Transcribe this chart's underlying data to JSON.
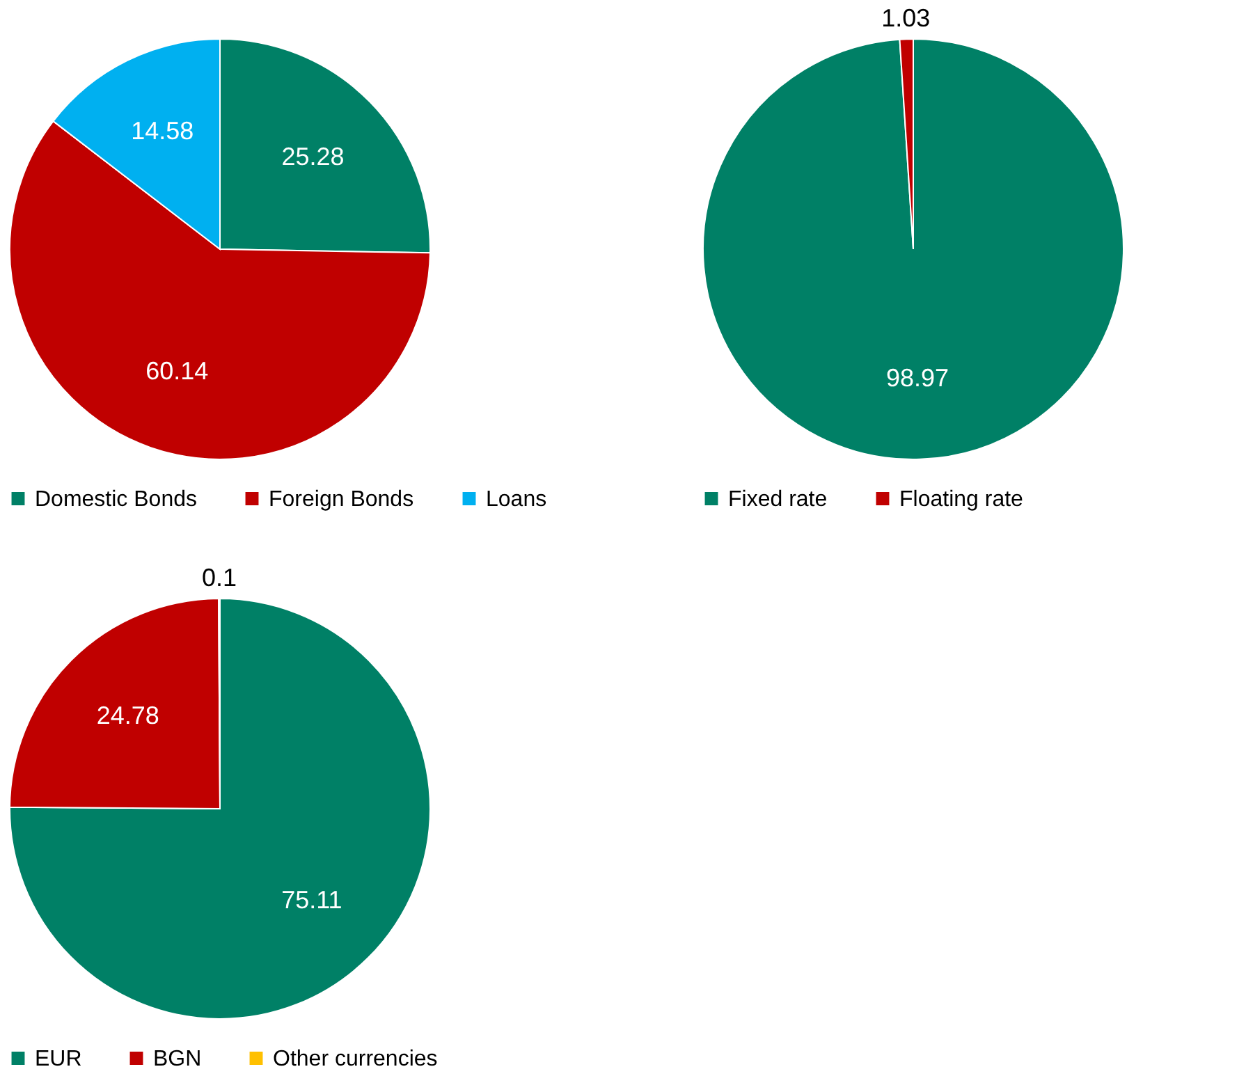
{
  "chart_data": [
    {
      "type": "pie",
      "categories": [
        "Domestic Bonds",
        "Foreign Bonds",
        "Loans"
      ],
      "values": [
        25.28,
        60.14,
        14.58
      ],
      "colors": [
        "#008066",
        "#c00000",
        "#00b0f0"
      ],
      "data_labels": true,
      "legend": "bottom"
    },
    {
      "type": "pie",
      "categories": [
        "Fixed rate",
        "Floating rate"
      ],
      "values": [
        98.97,
        1.03
      ],
      "colors": [
        "#008066",
        "#c00000"
      ],
      "data_labels": true,
      "legend": "bottom"
    },
    {
      "type": "pie",
      "categories": [
        "EUR",
        "BGN",
        "Other currencies"
      ],
      "values": [
        75.11,
        24.78,
        0.1
      ],
      "colors": [
        "#008066",
        "#c00000",
        "#ffc000"
      ],
      "data_labels": true,
      "legend": "bottom"
    }
  ]
}
